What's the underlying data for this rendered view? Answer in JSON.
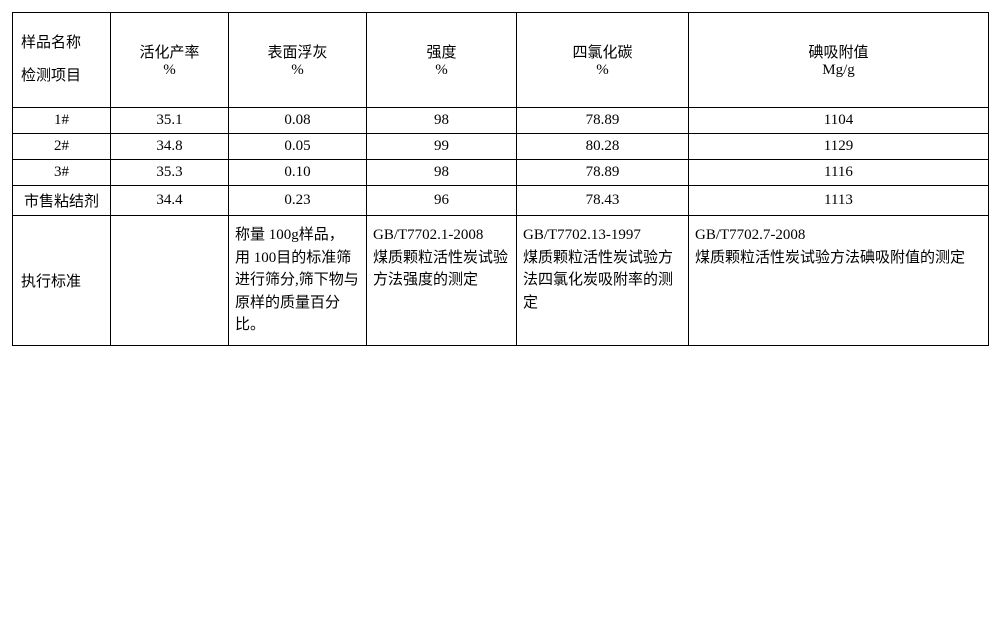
{
  "header": {
    "corner_line1": "样品名称",
    "corner_line2": "检测项目",
    "cols": [
      {
        "label": "活化产率",
        "unit": "%"
      },
      {
        "label": "表面浮灰",
        "unit": "%"
      },
      {
        "label": "强度",
        "unit": "%"
      },
      {
        "label": "四氯化碳",
        "unit": "%"
      },
      {
        "label": "碘吸附值",
        "unit": "Mg/g"
      }
    ]
  },
  "rows": [
    {
      "name": "1#",
      "vals": [
        "35.1",
        "0.08",
        "98",
        "78.89",
        "1104"
      ]
    },
    {
      "name": "2#",
      "vals": [
        "34.8",
        "0.05",
        "99",
        "80.28",
        "1129"
      ]
    },
    {
      "name": "3#",
      "vals": [
        "35.3",
        "0.10",
        "98",
        "78.89",
        "1116"
      ]
    },
    {
      "name": "市售粘结剂",
      "vals": [
        "34.4",
        "0.23",
        "96",
        "78.43",
        "1113"
      ]
    }
  ],
  "standards": {
    "label": "执行标准",
    "c1": "",
    "c2": "称量 100g样品， 用 100目的标准筛进行筛分,筛下物与原样的质量百分比。",
    "c3": "GB/T7702.1-2008\n煤质颗粒活性炭试验方法强度的测定",
    "c4": "GB/T7702.13-1997\n煤质颗粒活性炭试验方法四氯化炭吸附率的测定",
    "c5": "GB/T7702.7-2008\n煤质颗粒活性炭试验方法碘吸附值的测定"
  }
}
